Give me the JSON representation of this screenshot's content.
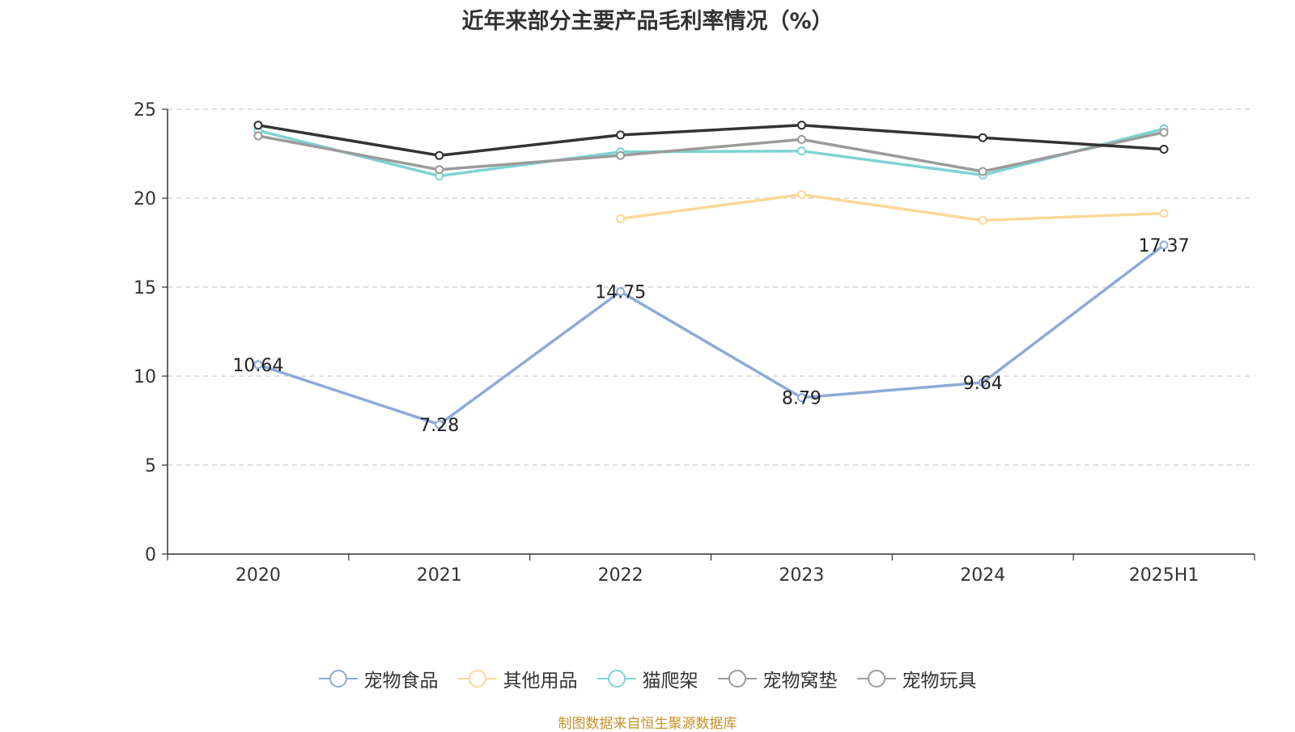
{
  "chart_data": {
    "type": "line",
    "title": "近年来部分主要产品毛利率情况（%）",
    "categories": [
      "2020",
      "2021",
      "2022",
      "2023",
      "2024",
      "2025H1"
    ],
    "ylim": [
      0,
      25
    ],
    "yticks": [
      "0",
      "5",
      "10",
      "15",
      "20",
      "25"
    ],
    "grid": true,
    "legend_position": "bottom",
    "series": [
      {
        "name": "宠物食品",
        "color": "#8eaad8",
        "values": [
          10.64,
          7.28,
          14.75,
          8.79,
          9.64,
          17.37
        ],
        "labels": [
          "10.64",
          "7.28",
          "14.75",
          "8.79",
          "9.64",
          "17.37"
        ]
      },
      {
        "name": "其他用品",
        "color": "#fcd898",
        "values": [
          null,
          null,
          18.85,
          20.2,
          18.75,
          19.15
        ]
      },
      {
        "name": "猫爬架",
        "color": "#7ed3d4",
        "values": [
          23.8,
          21.25,
          22.6,
          22.65,
          21.3,
          23.9
        ]
      },
      {
        "name": "宠物窝垫",
        "color": "#9b9b9b",
        "values": [
          23.5,
          21.6,
          22.4,
          23.3,
          21.5,
          23.7
        ]
      },
      {
        "name": "宠物玩具",
        "color": "#333333",
        "values": [
          24.1,
          22.4,
          23.55,
          24.1,
          23.4,
          22.75
        ]
      }
    ],
    "legend_colors": [
      "#8eaad8",
      "#fcd898",
      "#7ed3d4",
      "#9b9b9b",
      "#9b9b9b"
    ]
  },
  "source": "制图数据来自恒生聚源数据库"
}
